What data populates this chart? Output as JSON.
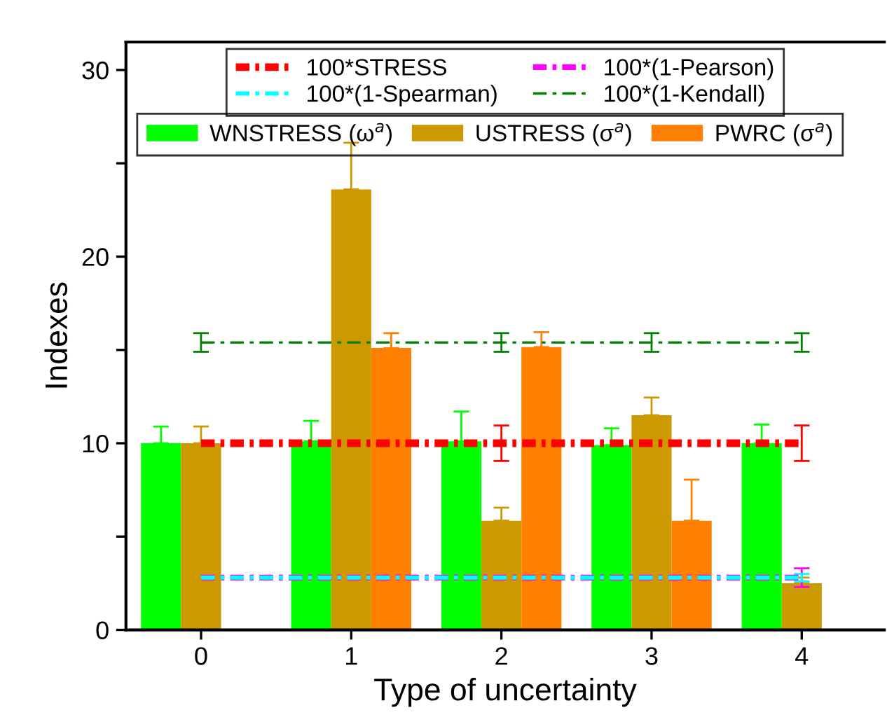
{
  "chart_data": {
    "type": "bar",
    "xlabel": "Type of uncertainty",
    "ylabel": "Indexes",
    "categories": [
      "0",
      "1",
      "2",
      "3",
      "4"
    ],
    "ylim": [
      0,
      31.5
    ],
    "yticks": [
      0,
      {
        "value": 5,
        "label": null
      },
      10,
      {
        "value": 15,
        "label": null
      },
      20,
      {
        "value": 25,
        "label": null
      },
      30
    ],
    "legend": "top",
    "grid": false,
    "series": [
      {
        "name": "100*STRESS",
        "type": "line",
        "color": "#ff0000",
        "line_style": "dashdot",
        "values": [
          10,
          10,
          10,
          10,
          10
        ],
        "errors": [
          null,
          null,
          0.95,
          null,
          0.95
        ]
      },
      {
        "name": "100*(1-Pearson)",
        "type": "line",
        "color": "#ff00ff",
        "line_style": "dashdot",
        "values": [
          2.8,
          2.8,
          2.8,
          2.8,
          2.8
        ],
        "errors": [
          null,
          null,
          null,
          null,
          0.5
        ]
      },
      {
        "name": "100*(1-Spearman)",
        "type": "line",
        "color": "#00ffff",
        "line_style": "dashdot",
        "values": [
          2.8,
          2.8,
          2.8,
          2.8,
          2.8
        ],
        "errors": [
          null,
          null,
          null,
          null,
          0.2
        ]
      },
      {
        "name": "100*(1-Kendall)",
        "type": "line",
        "color": "#008000",
        "line_style": "dashdot",
        "values": [
          15.4,
          15.4,
          15.4,
          15.4,
          15.4
        ],
        "errors": [
          0.5,
          null,
          0.5,
          0.5,
          0.5
        ]
      },
      {
        "name": "WNSTRESS (ω$^{a}$)",
        "color": "#00ff00",
        "values": [
          10.0,
          10.1,
          10.1,
          9.9,
          10.0
        ],
        "errors": [
          0.9,
          1.1,
          1.6,
          0.9,
          1.0
        ]
      },
      {
        "name": "USTRESS (σ$^{a}$)",
        "color": "#cc9900",
        "values": [
          10.0,
          23.6,
          5.85,
          11.5,
          2.5
        ],
        "errors": [
          0.9,
          2.5,
          0.7,
          0.95,
          0.3
        ]
      },
      {
        "name": "PWRC (σ$^{a}$)",
        "color": "#ff8000",
        "values": [
          null,
          15.1,
          15.15,
          5.85,
          null
        ],
        "errors": [
          null,
          0.8,
          0.8,
          2.2,
          null
        ]
      }
    ]
  }
}
